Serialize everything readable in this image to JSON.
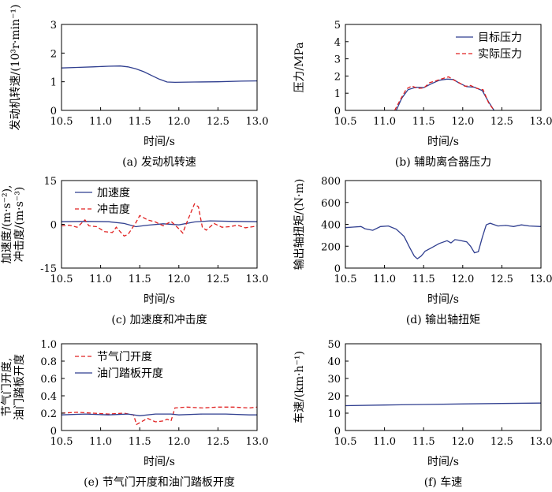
{
  "chart_data": [
    {
      "id": "a",
      "type": "line",
      "caption": "(a) 发动机转速",
      "xlabel": "时间/s",
      "ylabel": "发动机转速/(10³r·min⁻¹)",
      "xlim": [
        10.5,
        13.0
      ],
      "ylim": [
        0,
        3
      ],
      "xticks": [
        "10.5",
        "11.0",
        "11.5",
        "12.0",
        "12.5",
        "13.0"
      ],
      "yticks": [
        "0",
        "1",
        "2",
        "3"
      ],
      "legend": null,
      "series": [
        {
          "color": "#2f3e8f",
          "dash": "",
          "x": [
            10.5,
            10.7,
            10.9,
            11.1,
            11.25,
            11.35,
            11.45,
            11.55,
            11.65,
            11.75,
            11.85,
            11.95,
            12.2,
            12.5,
            12.8,
            13.0
          ],
          "y": [
            1.48,
            1.5,
            1.52,
            1.54,
            1.55,
            1.52,
            1.45,
            1.35,
            1.22,
            1.09,
            0.99,
            0.98,
            0.99,
            1.0,
            1.02,
            1.03
          ]
        }
      ]
    },
    {
      "id": "b",
      "type": "line",
      "caption": "(b) 辅助离合器压力",
      "xlabel": "时间/s",
      "ylabel": "压力/MPa",
      "xlim": [
        10.5,
        13.0
      ],
      "ylim": [
        0,
        5
      ],
      "xticks": [
        "10.5",
        "11.0",
        "11.5",
        "12.0",
        "12.5",
        "13.0"
      ],
      "yticks": [
        "0",
        "1",
        "2",
        "3",
        "4",
        "5"
      ],
      "legend": "top-right",
      "series": [
        {
          "name": "目标压力",
          "color": "#2f3e8f",
          "dash": "",
          "x": [
            11.15,
            11.22,
            11.3,
            11.4,
            11.5,
            11.6,
            11.7,
            11.8,
            11.88,
            11.95,
            12.05,
            12.15,
            12.25,
            12.33,
            12.4
          ],
          "y": [
            0,
            0.7,
            1.2,
            1.35,
            1.32,
            1.55,
            1.75,
            1.82,
            1.8,
            1.6,
            1.38,
            1.35,
            1.15,
            0.5,
            0
          ]
        },
        {
          "name": "实际压力",
          "color": "#e02020",
          "dash": "5,3",
          "x": [
            11.13,
            11.2,
            11.28,
            11.35,
            11.42,
            11.5,
            11.58,
            11.66,
            11.74,
            11.82,
            11.88,
            11.95,
            12.03,
            12.1,
            12.18,
            12.26,
            12.33,
            12.4
          ],
          "y": [
            0,
            0.6,
            1.25,
            1.42,
            1.28,
            1.3,
            1.62,
            1.72,
            1.85,
            1.95,
            1.78,
            1.62,
            1.4,
            1.45,
            1.28,
            1.2,
            0.45,
            0
          ]
        }
      ]
    },
    {
      "id": "c",
      "type": "line",
      "caption": "(c) 加速度和冲击度",
      "xlabel": "时间/s",
      "ylabel": "加速度/(m·s⁻²),",
      "ylabel2": "冲击度/(m·s⁻³)",
      "xlim": [
        10.5,
        13.0
      ],
      "ylim": [
        -15,
        15
      ],
      "xticks": [
        "10.5",
        "11.0",
        "11.5",
        "12.0",
        "12.5",
        "13.0"
      ],
      "yticks": [
        "-15",
        "0",
        "15"
      ],
      "legend": "top-left",
      "series": [
        {
          "name": "加速度",
          "color": "#2f3e8f",
          "dash": "",
          "x": [
            10.5,
            10.8,
            11.1,
            11.3,
            11.45,
            11.6,
            11.8,
            12.0,
            12.2,
            12.4,
            12.7,
            13.0
          ],
          "y": [
            0.9,
            1.0,
            0.9,
            0.3,
            -0.8,
            -0.3,
            0.2,
            -0.2,
            0.8,
            1.2,
            1.0,
            0.9
          ]
        },
        {
          "name": "冲击度",
          "color": "#e02020",
          "dash": "5,3",
          "x": [
            10.5,
            10.6,
            10.7,
            10.8,
            10.85,
            10.95,
            11.05,
            11.15,
            11.2,
            11.3,
            11.35,
            11.45,
            11.5,
            11.6,
            11.7,
            11.8,
            11.9,
            12.0,
            12.05,
            12.1,
            12.2,
            12.25,
            12.3,
            12.35,
            12.45,
            12.55,
            12.65,
            12.75,
            12.85,
            13.0
          ],
          "y": [
            -0.5,
            -0.3,
            -1.0,
            1.5,
            -0.5,
            -0.8,
            -2.5,
            -2.8,
            -1.0,
            -4.0,
            -3.5,
            0.5,
            3.0,
            1.5,
            0.8,
            -0.5,
            1.0,
            -1.5,
            -3.0,
            0.5,
            7.0,
            6.0,
            -1.0,
            -2.0,
            0.3,
            -1.0,
            -0.8,
            -0.3,
            -1.2,
            -0.6
          ]
        }
      ]
    },
    {
      "id": "d",
      "type": "line",
      "caption": "(d) 输出轴扭矩",
      "xlabel": "时间/s",
      "ylabel": "输出轴扭矩/(N·m)",
      "xlim": [
        10.5,
        13.0
      ],
      "ylim": [
        0,
        800
      ],
      "xticks": [
        "10.5",
        "11.0",
        "11.5",
        "12.0",
        "12.5",
        "13.0"
      ],
      "yticks": [
        "0",
        "200",
        "400",
        "600",
        "800"
      ],
      "legend": null,
      "series": [
        {
          "color": "#2f3e8f",
          "dash": "",
          "x": [
            10.5,
            10.6,
            10.7,
            10.75,
            10.85,
            10.95,
            11.05,
            11.15,
            11.25,
            11.32,
            11.38,
            11.42,
            11.47,
            11.52,
            11.6,
            11.7,
            11.8,
            11.85,
            11.9,
            11.95,
            12.05,
            12.1,
            12.15,
            12.2,
            12.25,
            12.3,
            12.35,
            12.45,
            12.55,
            12.65,
            12.75,
            12.85,
            13.0
          ],
          "y": [
            370,
            375,
            380,
            360,
            345,
            380,
            385,
            355,
            290,
            190,
            110,
            85,
            110,
            155,
            185,
            225,
            250,
            230,
            260,
            255,
            240,
            200,
            140,
            150,
            280,
            395,
            410,
            385,
            390,
            380,
            395,
            385,
            380
          ]
        }
      ]
    },
    {
      "id": "e",
      "type": "line",
      "caption": "(e) 节气门开度和油门踏板开度",
      "xlabel": "时间/s",
      "ylabel": "节气门开度,",
      "ylabel2": "油门踏板开度",
      "xlim": [
        10.5,
        13.0
      ],
      "ylim": [
        0,
        1.0
      ],
      "xticks": [
        "10.5",
        "11.0",
        "11.5",
        "12.0",
        "12.5",
        "13.0"
      ],
      "yticks": [
        "0",
        "0.2",
        "0.4",
        "0.6",
        "0.8",
        "1.0"
      ],
      "legend": "top-left",
      "series": [
        {
          "name": "节气门开度",
          "color": "#e02020",
          "dash": "5,3",
          "x": [
            10.5,
            10.7,
            10.9,
            11.1,
            11.3,
            11.42,
            11.46,
            11.52,
            11.6,
            11.7,
            11.8,
            11.85,
            11.9,
            11.95,
            12.1,
            12.3,
            12.5,
            12.7,
            12.9,
            13.0
          ],
          "y": [
            0.2,
            0.21,
            0.2,
            0.19,
            0.2,
            0.18,
            0.07,
            0.1,
            0.14,
            0.1,
            0.11,
            0.13,
            0.11,
            0.26,
            0.27,
            0.26,
            0.27,
            0.27,
            0.26,
            0.27
          ]
        },
        {
          "name": "油门踏板开度",
          "color": "#2f3e8f",
          "dash": "",
          "x": [
            10.5,
            10.8,
            11.1,
            11.35,
            11.5,
            11.7,
            11.9,
            12.0,
            12.3,
            12.6,
            12.9,
            13.0
          ],
          "y": [
            0.18,
            0.19,
            0.18,
            0.19,
            0.17,
            0.19,
            0.19,
            0.18,
            0.19,
            0.19,
            0.18,
            0.18
          ]
        }
      ]
    },
    {
      "id": "f",
      "type": "line",
      "caption": "(f) 车速",
      "xlabel": "时间/s",
      "ylabel": "车速/(km·h⁻¹)",
      "xlim": [
        10.5,
        13.0
      ],
      "ylim": [
        0,
        50
      ],
      "xticks": [
        "10.5",
        "11.0",
        "11.5",
        "12.0",
        "12.5",
        "13.0"
      ],
      "yticks": [
        "0",
        "10",
        "20",
        "30",
        "40",
        "50"
      ],
      "legend": null,
      "series": [
        {
          "color": "#2f3e8f",
          "dash": "",
          "x": [
            10.5,
            11.0,
            11.5,
            12.0,
            12.5,
            13.0
          ],
          "y": [
            14.3,
            14.7,
            15.0,
            15.3,
            15.6,
            15.8
          ]
        }
      ]
    }
  ]
}
